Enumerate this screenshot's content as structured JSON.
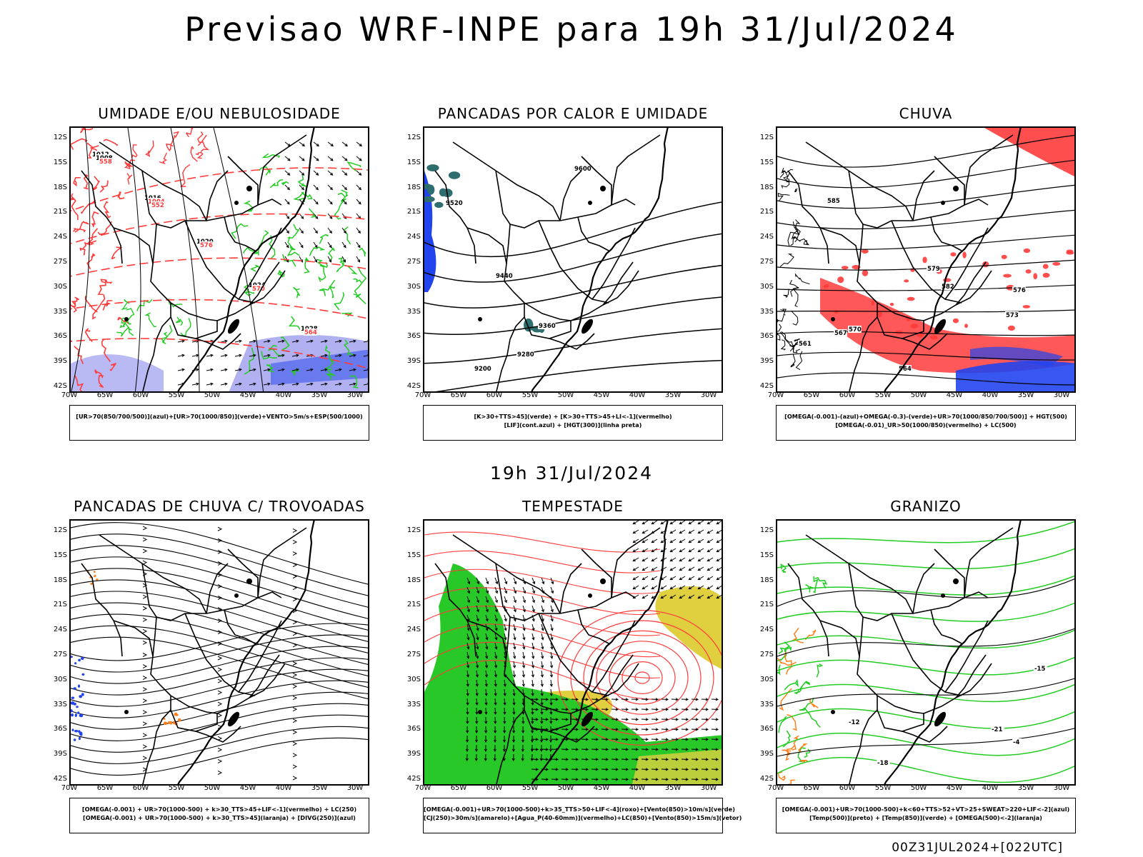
{
  "header": {
    "title": "Previsao WRF-INPE  para 19h 31/Jul/2024"
  },
  "middle": {
    "title": "19h 31/Jul/2024"
  },
  "footer": {
    "text": "00Z31JUL2024+[022UTC]"
  },
  "axes": {
    "lat": [
      "12S",
      "15S",
      "18S",
      "21S",
      "24S",
      "27S",
      "30S",
      "33S",
      "36S",
      "39S",
      "42S"
    ],
    "lon": [
      "70W",
      "65W",
      "60W",
      "55W",
      "50W",
      "45W",
      "40W",
      "35W",
      "30W"
    ]
  },
  "colors": {
    "red": "#ff3b3b",
    "green": "#22cc22",
    "blue": "#2244ee",
    "lavender": "#a8a8f0",
    "teal": "#2e6e6e",
    "orange": "#ff7f1a",
    "yellow": "#e0d040",
    "grass": "#28c828"
  },
  "panels": [
    {
      "id": "umidade",
      "title": "UMIDADE E/OU NEBULOSIDADE",
      "legend": [
        "[UR>70(850/700/500)](azul)+[UR>70(1000/850)](verde)+VENTO>5m/s+ESP(500/1000)"
      ],
      "contour_labels": [
        "1012",
        "1016",
        "1020",
        "1024",
        "1028",
        "1008",
        "1004",
        "576",
        "570",
        "564",
        "558",
        "552"
      ]
    },
    {
      "id": "pancadas-calor",
      "title": "PANCADAS POR CALOR E UMIDADE",
      "legend": [
        "[K>30+TTS>45](verde) + [K>30+TTS>45+LI<-1](vermelho)",
        "[LIF](cont.azul) + [HGT(300)](linha preta)"
      ],
      "contour_labels": [
        "9600",
        "9520",
        "9440",
        "9360",
        "9280",
        "9200"
      ]
    },
    {
      "id": "chuva",
      "title": "CHUVA",
      "legend": [
        "[OMEGA(-0.001)-(azul)+OMEGA(-0.3)-(verde)+UR>70(1000/850/700/500)] + HGT(500)",
        "[OMEGA(-0.01)_UR>50(1000/850)(vermelho) + LC(500)"
      ],
      "contour_labels": [
        "585",
        "582",
        "579",
        "576",
        "573",
        "570",
        "567",
        "564",
        "561"
      ]
    },
    {
      "id": "pancadas-trovoadas",
      "title": "PANCADAS DE CHUVA C/ TROVOADAS",
      "legend": [
        "[OMEGA(-0.001) + UR>70(1000-500) + k>30_TTS>45+LIF<-1](vermelho) + LC(250)",
        "[OMEGA(-0.001) + UR>70(1000-500) + k>30_TTS>45](laranja) + [DIVG(250)](azul)"
      ],
      "contour_labels": []
    },
    {
      "id": "tempestade",
      "title": "TEMPESTADE",
      "legend": [
        "[OMEGA(-0.001)+UR>70(1000-500)+k>35_TTS>50+LIF<-4](roxo)+[Vento(850)>10m/s](verde)",
        "[CJ(250)>30m/s](amarelo)+[Agua_P(40-60mm)](vermelho)+LC(850)+[Vento(850)>15m/s](vetor)"
      ],
      "contour_labels": []
    },
    {
      "id": "granizo",
      "title": "GRANIZO",
      "legend": [
        "[OMEGA(-0.001)+UR>70(1000-500)+k<60+TTS>52+VT>25+SWEAT>220+LIF<-2](azul)",
        "[Temp(500)](preto) + [Temp(850)](verde) + [OMEGA(500)<-2](laranja)"
      ],
      "contour_labels": [
        "-12",
        "-15",
        "-18",
        "-21",
        "-4"
      ]
    }
  ]
}
